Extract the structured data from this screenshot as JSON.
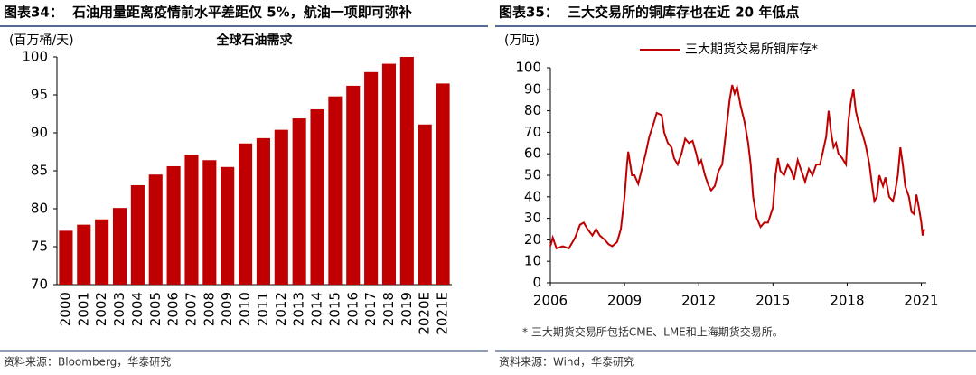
{
  "chart_data": [
    {
      "type": "bar",
      "figure_label": "图表34：",
      "heading": "石油用量距离疫情前水平差距仅 5%，航油一项即可弥补",
      "title": "全球石油需求",
      "y_label": "(百万桶/天)",
      "categories": [
        "2000",
        "2001",
        "2002",
        "2003",
        "2004",
        "2005",
        "2006",
        "2007",
        "2008",
        "2009",
        "2010",
        "2011",
        "2012",
        "2013",
        "2014",
        "2015",
        "2016",
        "2017",
        "2018",
        "2019",
        "2020E",
        "2021E"
      ],
      "values": [
        77.1,
        77.9,
        78.6,
        80.1,
        83.1,
        84.5,
        85.6,
        87.1,
        86.4,
        85.5,
        88.6,
        89.3,
        90.4,
        91.9,
        93.1,
        94.8,
        96.2,
        98.0,
        99.1,
        100.0,
        91.1,
        96.5
      ],
      "color": "#c00000",
      "ylim": [
        70,
        100
      ],
      "yticks": [
        70,
        75,
        80,
        85,
        90,
        95,
        100
      ],
      "source": "资料来源：Bloomberg，华泰研究"
    },
    {
      "type": "line",
      "figure_label": "图表35：",
      "heading": "三大交易所的铜库存也在近 20 年低点",
      "y_label": "(万吨)",
      "legend": "upper-center",
      "xlim": [
        2006,
        2021.2
      ],
      "xticks": [
        2006,
        2009,
        2012,
        2015,
        2018,
        2021
      ],
      "ylim": [
        0,
        100
      ],
      "yticks": [
        0,
        10,
        20,
        30,
        40,
        50,
        60,
        70,
        80,
        90,
        100
      ],
      "series": [
        {
          "name": "三大期货交易所铜库存*",
          "color": "#c00000",
          "x": [
            2006.0,
            2006.1,
            2006.25,
            2006.5,
            2006.75,
            2007.0,
            2007.2,
            2007.35,
            2007.5,
            2007.7,
            2007.85,
            2008.0,
            2008.2,
            2008.35,
            2008.5,
            2008.7,
            2008.85,
            2009.0,
            2009.1,
            2009.15,
            2009.3,
            2009.4,
            2009.55,
            2009.7,
            2009.85,
            2010.0,
            2010.2,
            2010.3,
            2010.5,
            2010.6,
            2010.75,
            2010.9,
            2011.0,
            2011.15,
            2011.3,
            2011.45,
            2011.6,
            2011.75,
            2011.9,
            2012.0,
            2012.1,
            2012.25,
            2012.4,
            2012.5,
            2012.65,
            2012.8,
            2012.95,
            2013.1,
            2013.25,
            2013.35,
            2013.45,
            2013.55,
            2013.7,
            2013.85,
            2014.0,
            2014.1,
            2014.2,
            2014.35,
            2014.5,
            2014.65,
            2014.8,
            2015.0,
            2015.1,
            2015.2,
            2015.3,
            2015.45,
            2015.6,
            2015.75,
            2015.85,
            2016.0,
            2016.15,
            2016.3,
            2016.45,
            2016.6,
            2016.75,
            2016.9,
            2017.0,
            2017.15,
            2017.25,
            2017.35,
            2017.45,
            2017.55,
            2017.65,
            2017.8,
            2017.95,
            2018.05,
            2018.15,
            2018.25,
            2018.35,
            2018.45,
            2018.6,
            2018.75,
            2018.9,
            2019.0,
            2019.1,
            2019.2,
            2019.3,
            2019.45,
            2019.55,
            2019.7,
            2019.85,
            2019.95,
            2020.05,
            2020.15,
            2020.25,
            2020.35,
            2020.5,
            2020.6,
            2020.7,
            2020.8,
            2020.9,
            2021.0,
            2021.05,
            2021.12
          ],
          "values": [
            17,
            21,
            16,
            17,
            16,
            21,
            27,
            28,
            25,
            22,
            25,
            22,
            20,
            18,
            17,
            19,
            25,
            40,
            55,
            61,
            50,
            50,
            46,
            53,
            60,
            68,
            75,
            79,
            78,
            70,
            65,
            63,
            58,
            55,
            60,
            67,
            65,
            66,
            60,
            55,
            57,
            50,
            45,
            43,
            45,
            52,
            55,
            70,
            85,
            92,
            88,
            91,
            82,
            75,
            65,
            55,
            40,
            30,
            26,
            28,
            28,
            35,
            50,
            58,
            52,
            50,
            55,
            52,
            48,
            57,
            52,
            47,
            53,
            50,
            55,
            55,
            60,
            68,
            80,
            70,
            63,
            65,
            60,
            58,
            55,
            75,
            84,
            90,
            80,
            75,
            70,
            64,
            55,
            46,
            38,
            40,
            50,
            45,
            49,
            40,
            38,
            43,
            50,
            63,
            55,
            45,
            40,
            33,
            32,
            41,
            35,
            28,
            22,
            25
          ]
        }
      ],
      "footnote": "* 三大期货交易所包括CME、LME和上海期货交易所。",
      "source": "资料来源：Wind，华泰研究"
    }
  ]
}
